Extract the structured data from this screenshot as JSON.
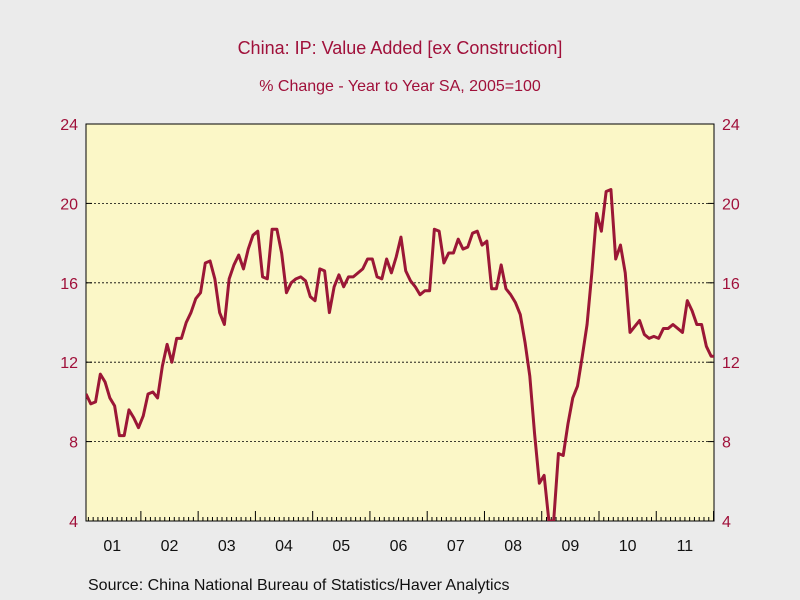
{
  "title": "China: IP: Value Added [ex Construction]",
  "subtitle": "% Change - Year to Year    SA, 2005=100",
  "source": "Source:  China National Bureau of Statistics/Haver Analytics",
  "colors": {
    "line": "#9b1736",
    "plot_bg": "#fbf7c7",
    "page_bg": "#ebebeb",
    "tick_text": "#a0103a",
    "axis_text": "#111111"
  },
  "chart_data": {
    "type": "line",
    "title": "China: IP: Value Added [ex Construction]",
    "subtitle": "% Change - Year to Year    SA, 2005=100",
    "xlabel": "",
    "ylabel": "",
    "ylim": [
      4,
      24
    ],
    "yticks": [
      4,
      8,
      12,
      16,
      20,
      24
    ],
    "y_tick_labels": [
      "4",
      "8",
      "12",
      "16",
      "20",
      "24"
    ],
    "y_axis_sides": [
      "left",
      "right"
    ],
    "x_tick_labels": [
      "01",
      "02",
      "03",
      "04",
      "05",
      "06",
      "07",
      "08",
      "09",
      "10",
      "11"
    ],
    "grid": "horizontal dashed",
    "series": [
      {
        "values": [
          10.4,
          9.9,
          10.0,
          11.4,
          11.0,
          10.2,
          9.8,
          8.3,
          8.3,
          9.6,
          9.2,
          8.7,
          9.3,
          10.4,
          10.5,
          10.2,
          11.8,
          12.9,
          12.0,
          13.2,
          13.2,
          14.0,
          14.5,
          15.2,
          15.5,
          17.0,
          17.1,
          16.2,
          14.5,
          13.9,
          16.2,
          16.9,
          17.4,
          16.7,
          17.7,
          18.4,
          18.6,
          16.3,
          16.2,
          18.7,
          18.7,
          17.5,
          15.5,
          16.0,
          16.2,
          16.3,
          16.1,
          15.3,
          15.1,
          16.7,
          16.6,
          14.5,
          15.8,
          16.4,
          15.8,
          16.3,
          16.3,
          16.5,
          16.7,
          17.2,
          17.2,
          16.3,
          16.2,
          17.2,
          16.5,
          17.3,
          18.3,
          16.6,
          16.1,
          15.8,
          15.4,
          15.6,
          15.6,
          18.7,
          18.6,
          17.0,
          17.5,
          17.5,
          18.2,
          17.7,
          17.8,
          18.5,
          18.6,
          17.9,
          18.1,
          15.7,
          15.7,
          16.9,
          15.7,
          15.4,
          15.0,
          14.4,
          13.0,
          11.3,
          8.4,
          5.9,
          6.3,
          4.0,
          4.0,
          7.4,
          7.3,
          8.9,
          10.2,
          10.8,
          12.3,
          13.9,
          16.5,
          19.5,
          18.6,
          20.6,
          20.7,
          17.2,
          17.9,
          16.5,
          13.5,
          13.8,
          14.1,
          13.4,
          13.2,
          13.3,
          13.2,
          13.7,
          13.7,
          13.9,
          13.7,
          13.5,
          15.1,
          14.6,
          13.9,
          13.9,
          12.8,
          12.3,
          12.3
        ]
      }
    ]
  }
}
